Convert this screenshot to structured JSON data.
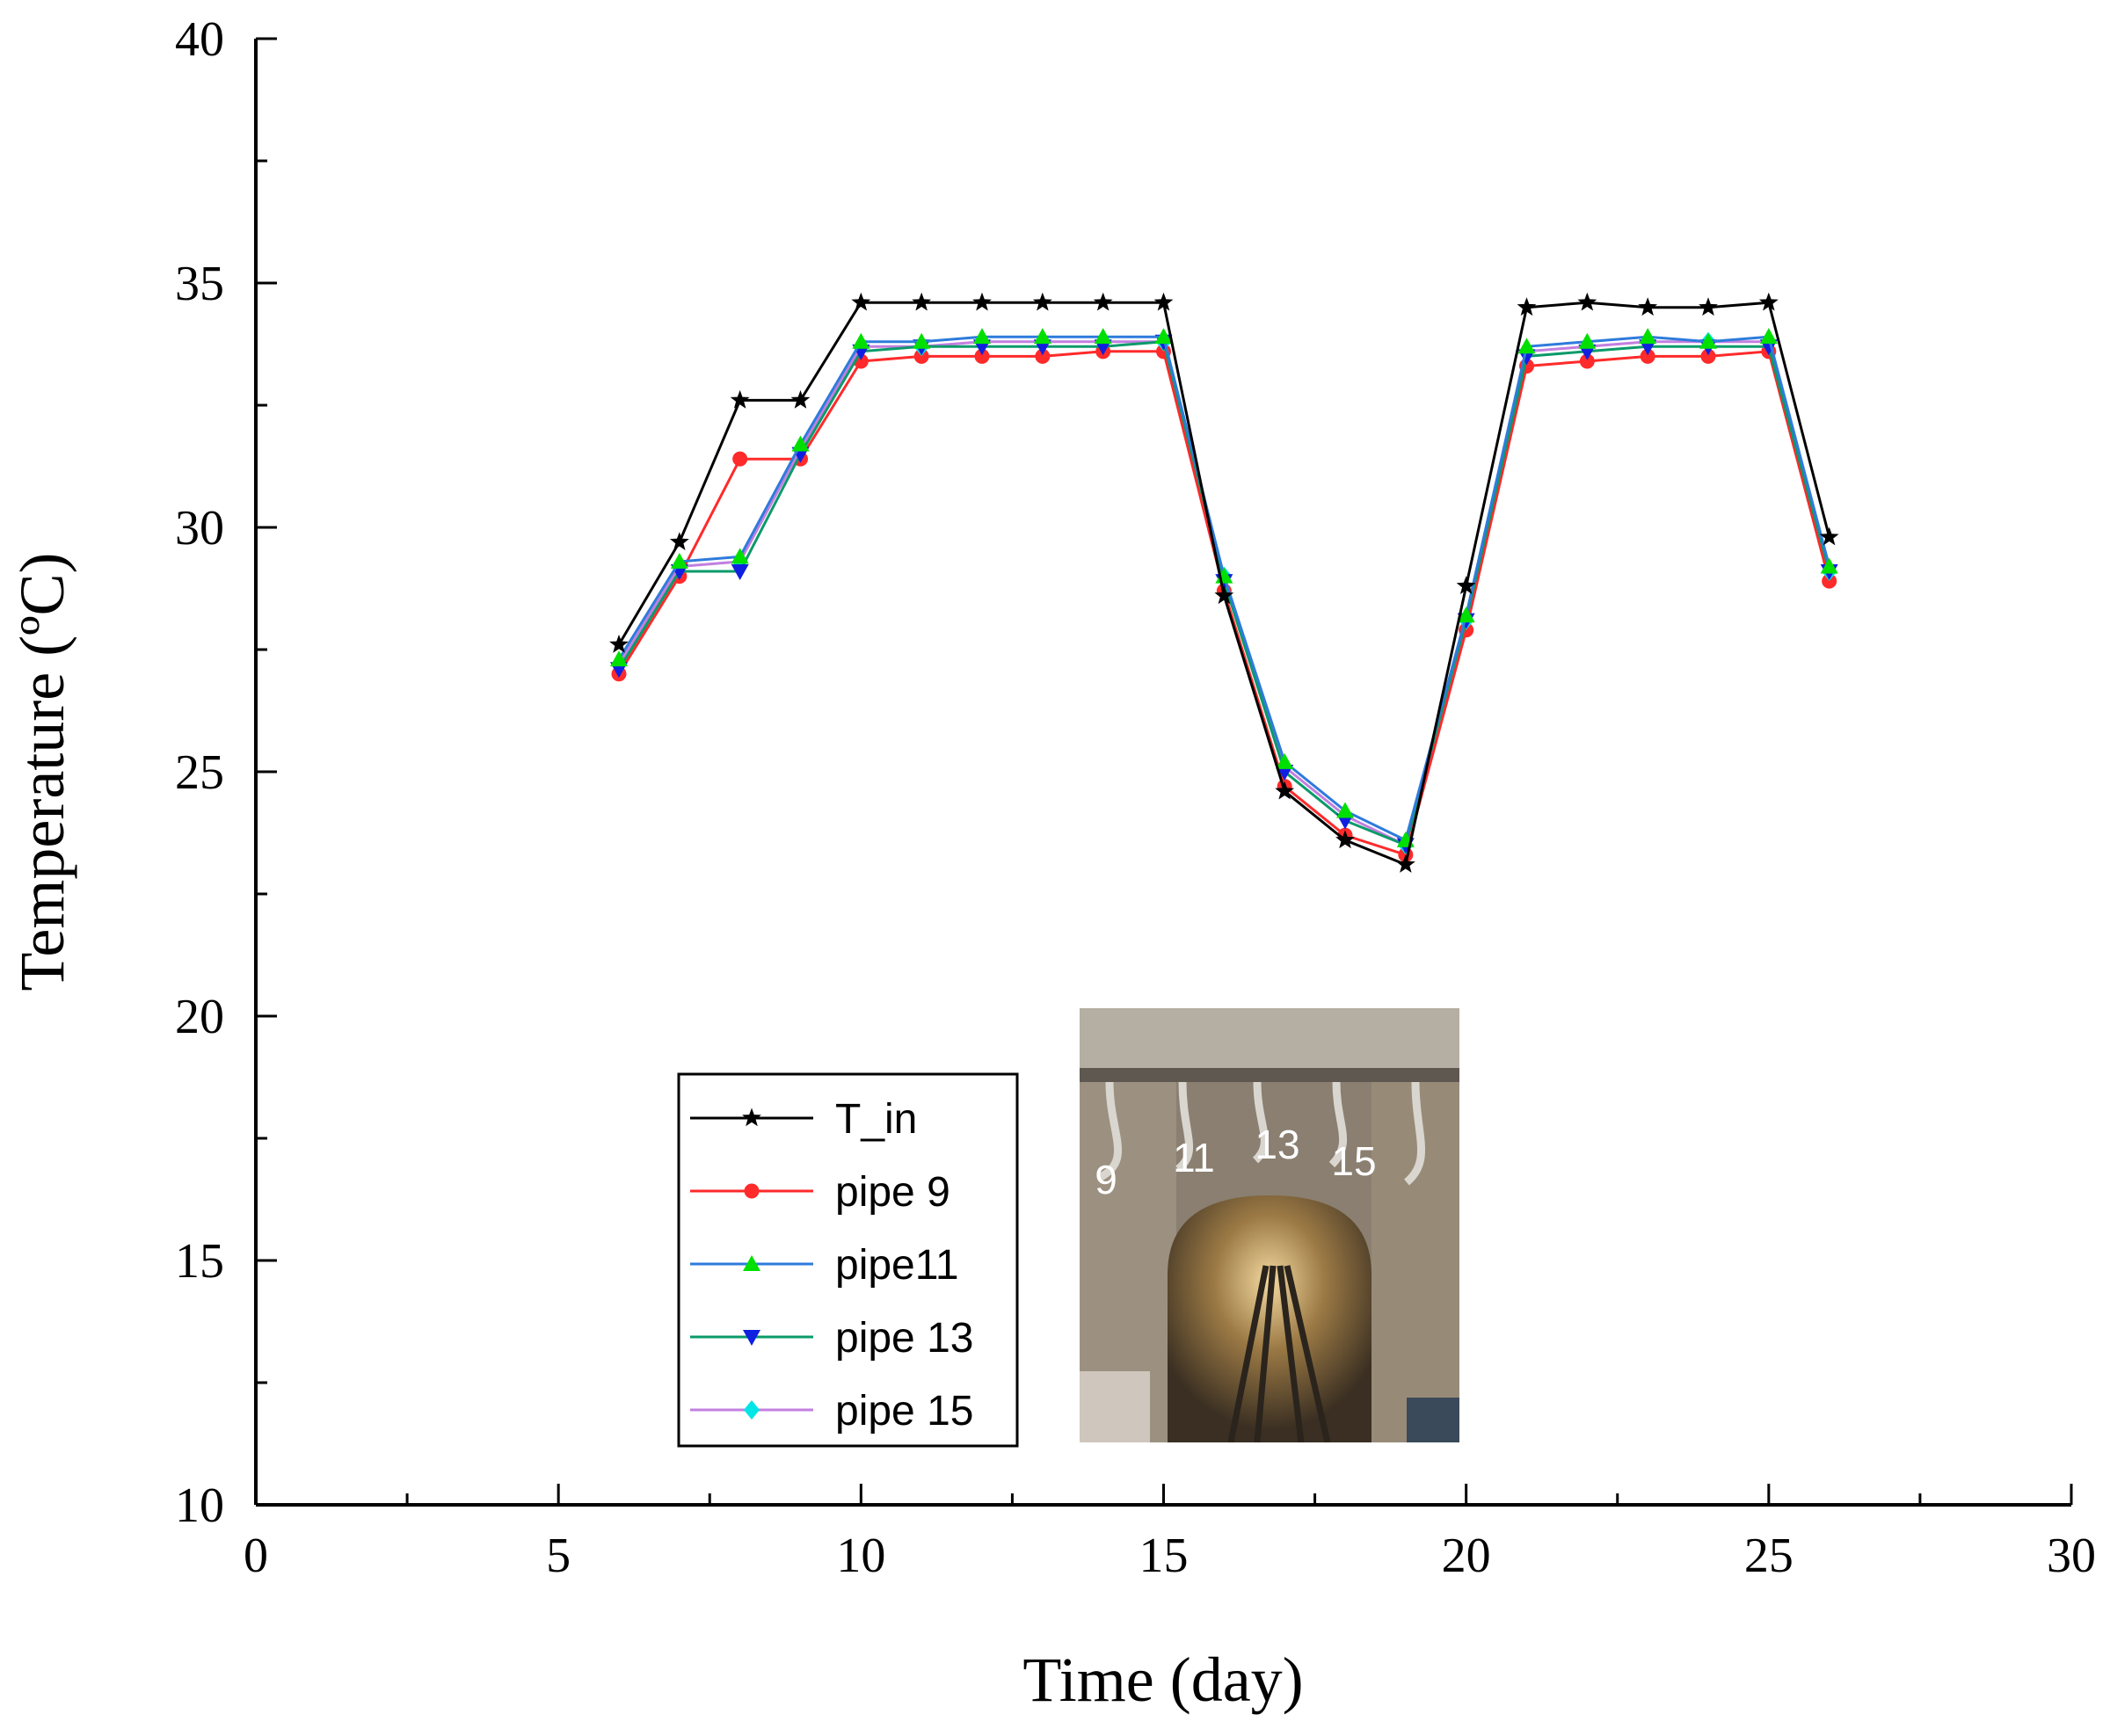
{
  "chart_data": {
    "type": "line",
    "xlabel": "Time (day)",
    "ylabel": "Temperature (ºC)",
    "xlim": [
      0,
      30
    ],
    "ylim": [
      10,
      40
    ],
    "xticks": [
      0,
      5,
      10,
      15,
      20,
      25,
      30
    ],
    "yticks": [
      10,
      15,
      20,
      25,
      30,
      35,
      40
    ],
    "grid": false,
    "legend_position": "bottom-left (inside plot)",
    "x": [
      6,
      7,
      8,
      9,
      10,
      11,
      12,
      13,
      14,
      15,
      16,
      17,
      18,
      19,
      20,
      21,
      22,
      23,
      24,
      25,
      26
    ],
    "series": [
      {
        "name": "T_in",
        "color": "#000000",
        "marker": "star",
        "values": [
          27.6,
          29.7,
          32.6,
          32.6,
          34.6,
          34.6,
          34.6,
          34.6,
          34.6,
          34.6,
          28.6,
          24.6,
          23.6,
          23.1,
          28.8,
          34.5,
          34.6,
          34.5,
          34.5,
          34.6,
          29.8
        ]
      },
      {
        "name": "pipe 9",
        "color": "#ff2a2a",
        "marker": "circle",
        "values": [
          27.0,
          29.0,
          31.4,
          31.4,
          33.4,
          33.5,
          33.5,
          33.5,
          33.6,
          33.6,
          28.7,
          24.7,
          23.7,
          23.3,
          27.9,
          33.3,
          33.4,
          33.5,
          33.5,
          33.6,
          28.9
        ]
      },
      {
        "name": "pipe11",
        "color": "#2e7bdc",
        "marker": "triangle-up",
        "values": [
          27.3,
          29.3,
          29.4,
          31.7,
          33.8,
          33.8,
          33.9,
          33.9,
          33.9,
          33.9,
          29.0,
          25.2,
          24.2,
          23.6,
          28.2,
          33.7,
          33.8,
          33.9,
          33.8,
          33.9,
          29.2
        ]
      },
      {
        "name": "pipe 13",
        "color": "#0a9a6a",
        "marker": "triangle-down",
        "values": [
          27.1,
          29.1,
          29.1,
          31.5,
          33.6,
          33.7,
          33.7,
          33.7,
          33.7,
          33.8,
          28.9,
          25.0,
          24.0,
          23.5,
          28.1,
          33.5,
          33.6,
          33.7,
          33.7,
          33.7,
          29.1
        ]
      },
      {
        "name": "pipe 15",
        "color": "#c27fe0",
        "marker": "diamond",
        "values": [
          27.2,
          29.2,
          29.3,
          31.6,
          33.7,
          33.7,
          33.8,
          33.8,
          33.8,
          33.8,
          29.0,
          25.1,
          24.1,
          23.5,
          28.1,
          33.6,
          33.7,
          33.8,
          33.8,
          33.8,
          29.1
        ]
      }
    ]
  },
  "inset_photo": {
    "pipe_labels": [
      "9",
      "11",
      "13",
      "15"
    ]
  }
}
